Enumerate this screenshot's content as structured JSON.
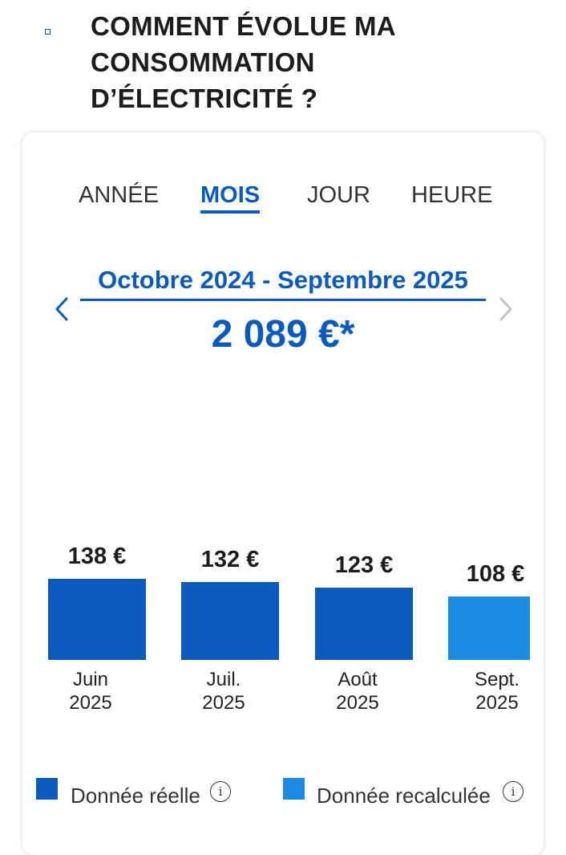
{
  "header": {
    "title": "COMMENT ÉVOLUE MA CONSOMMATION D’ÉLECTRICITÉ ?"
  },
  "tabs": [
    {
      "label": "ANNÉE",
      "active": false
    },
    {
      "label": "MOIS",
      "active": true
    },
    {
      "label": "JOUR",
      "active": false
    },
    {
      "label": "HEURE",
      "active": false
    }
  ],
  "period": {
    "label": "Octobre 2024 - Septembre 2025",
    "total": "2 089 €*"
  },
  "icons": {
    "previous": "chevron-left-icon",
    "next": "chevron-right-icon",
    "info": "info-icon"
  },
  "colors": {
    "accent": "#0a5bbd",
    "real": "#0a5bbd",
    "recalculated": "#1a8be0",
    "next_disabled": "#c4c4c4"
  },
  "chart_data": {
    "type": "bar",
    "categories": [
      "Juin\n2025",
      "Juil.\n2025",
      "Août\n2025",
      "Sept.\n2025"
    ],
    "values": [
      138,
      132,
      123,
      108
    ],
    "value_labels": [
      "138 €",
      "132 €",
      "123 €",
      "108 €"
    ],
    "series_type": [
      "Donnée réelle",
      "Donnée réelle",
      "Donnée réelle",
      "Donnée recalculée"
    ],
    "unit": "€"
  },
  "legend": [
    {
      "label": "Donnée réelle",
      "color": "#0a5bbd"
    },
    {
      "label": "Donnée recalculée",
      "color": "#1a8be0"
    }
  ]
}
